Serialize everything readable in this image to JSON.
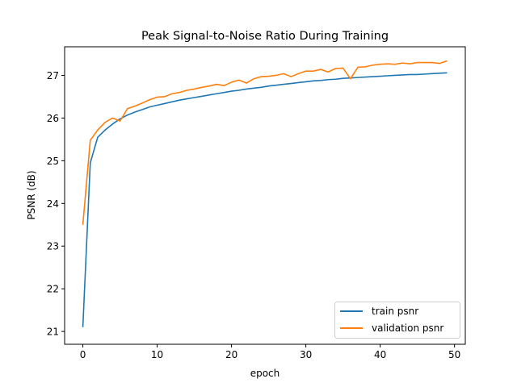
{
  "chart_data": {
    "type": "line",
    "title": "Peak Signal-to-Noise Ratio During Training",
    "xlabel": "epoch",
    "ylabel": "PSNR (dB)",
    "xlim": [
      -2.45,
      51.45
    ],
    "ylim": [
      20.7,
      27.67
    ],
    "xticks": [
      0,
      10,
      20,
      30,
      40,
      50
    ],
    "yticks": [
      21,
      22,
      23,
      24,
      25,
      26,
      27
    ],
    "grid": false,
    "legend_position": "lower-right",
    "x": [
      0,
      1,
      2,
      3,
      4,
      5,
      6,
      7,
      8,
      9,
      10,
      11,
      12,
      13,
      14,
      15,
      16,
      17,
      18,
      19,
      20,
      21,
      22,
      23,
      24,
      25,
      26,
      27,
      28,
      29,
      30,
      31,
      32,
      33,
      34,
      35,
      36,
      37,
      38,
      39,
      40,
      41,
      42,
      43,
      44,
      45,
      46,
      47,
      48,
      49
    ],
    "series": [
      {
        "name": "train psnr",
        "color": "#1f77b4",
        "values": [
          21.1,
          24.95,
          25.55,
          25.72,
          25.86,
          25.98,
          26.07,
          26.14,
          26.2,
          26.26,
          26.3,
          26.34,
          26.38,
          26.42,
          26.45,
          26.48,
          26.51,
          26.54,
          26.57,
          26.6,
          26.63,
          26.65,
          26.68,
          26.7,
          26.72,
          26.75,
          26.77,
          26.79,
          26.81,
          26.83,
          26.85,
          26.87,
          26.88,
          26.9,
          26.91,
          26.93,
          26.94,
          26.95,
          26.96,
          26.97,
          26.98,
          26.99,
          27.0,
          27.01,
          27.02,
          27.02,
          27.03,
          27.04,
          27.05,
          27.06
        ]
      },
      {
        "name": "validation psnr",
        "color": "#ff7f0e",
        "values": [
          23.5,
          25.48,
          25.72,
          25.9,
          26.0,
          25.93,
          26.22,
          26.28,
          26.35,
          26.43,
          26.49,
          26.5,
          26.57,
          26.6,
          26.65,
          26.68,
          26.72,
          26.75,
          26.79,
          26.76,
          26.84,
          26.89,
          26.82,
          26.92,
          26.97,
          26.98,
          27.0,
          27.04,
          26.97,
          27.04,
          27.1,
          27.1,
          27.14,
          27.08,
          27.16,
          27.17,
          26.92,
          27.19,
          27.2,
          27.24,
          27.26,
          27.27,
          27.26,
          27.29,
          27.27,
          27.3,
          27.3,
          27.3,
          27.28,
          27.34
        ]
      }
    ]
  }
}
